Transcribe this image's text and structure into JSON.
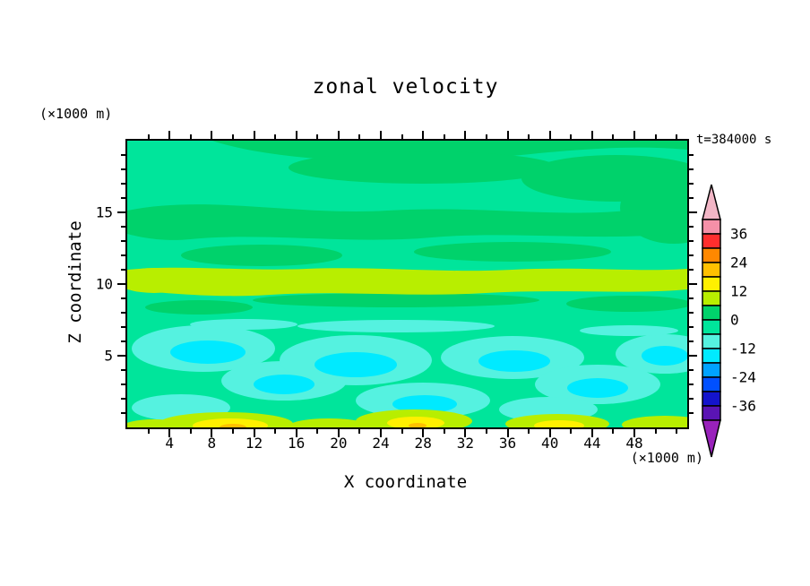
{
  "palette": {
    "background": "#ffffff",
    "frame": "#000000",
    "field_base_green": "#00e59b",
    "field_green_patch": "#00d26b",
    "band_green_yellow": "#b8ee00",
    "turquoise": "#55f2e0",
    "cyan": "#00eaff",
    "yellow": "#fff000",
    "amber": "#ffc000"
  },
  "chart_data": {
    "type": "contour",
    "title": "zonal velocity",
    "time_label": "t=384000 s",
    "xlabel": "X coordinate",
    "ylabel": "Z coordinate",
    "x_unit_label": "(×1000 m)",
    "y_unit_label": "(×1000 m)",
    "xlim": [
      0,
      53
    ],
    "ylim": [
      0,
      20
    ],
    "x_ticks": [
      4,
      8,
      12,
      16,
      20,
      24,
      28,
      32,
      36,
      40,
      44,
      48
    ],
    "y_ticks": [
      5,
      10,
      15
    ],
    "x_minor_step": 2,
    "y_minor_step": 1,
    "grid": false,
    "colorbar": {
      "position": "right",
      "tick_labels": [
        "36",
        "24",
        "12",
        "0",
        "-12",
        "-24",
        "-36"
      ],
      "levels_top_to_bottom": [
        42,
        36,
        30,
        24,
        18,
        12,
        6,
        0,
        -6,
        -12,
        -18,
        -24,
        -30,
        -36,
        -42
      ],
      "top_arrow_color": "#f2b6c6",
      "bottom_arrow_color": "#9922bb",
      "cell_colors_top_to_bottom": [
        "#f590a8",
        "#ff2e2e",
        "#ff8800",
        "#ffc000",
        "#fff000",
        "#b8ee00",
        "#00d26b",
        "#00e59b",
        "#55f2e0",
        "#00eaff",
        "#00a2ff",
        "#0050ff",
        "#1414cc",
        "#5a14b4"
      ]
    },
    "approx_field_regions": [
      {
        "z_range_x1000m": [
          11,
          20
        ],
        "value_range": [
          -6,
          6
        ],
        "pattern": "broad spring-green areas near zero with slightly darker green patches"
      },
      {
        "z_range_x1000m": [
          9.5,
          11
        ],
        "value_range": [
          6,
          12
        ],
        "pattern": "continuous yellow-green band (jet) spanning the full x range"
      },
      {
        "z_range_x1000m": [
          5.5,
          9.5
        ],
        "value_range": [
          -12,
          0
        ],
        "pattern": "green background with thin turquoise streaks"
      },
      {
        "z_range_x1000m": [
          1,
          5.5
        ],
        "value_range": [
          -18,
          -6
        ],
        "pattern": "scattered turquoise and bright cyan blobs"
      },
      {
        "z_range_x1000m": [
          0,
          1
        ],
        "value_range": [
          6,
          24
        ],
        "pattern": "yellow-green and yellow streaks along the bottom with small amber spots"
      }
    ]
  }
}
